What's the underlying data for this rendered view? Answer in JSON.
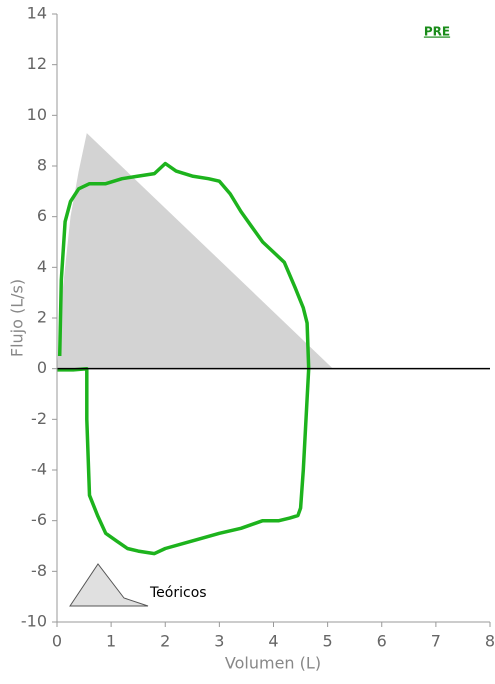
{
  "chart_data": {
    "type": "line",
    "xlabel": "Volumen (L)",
    "ylabel": "Flujo (L/s)",
    "xlim": [
      0,
      8
    ],
    "ylim": [
      -10,
      14
    ],
    "xticks": [
      0,
      1,
      2,
      3,
      4,
      5,
      6,
      7,
      8
    ],
    "yticks": [
      -10,
      -8,
      -6,
      -4,
      -2,
      0,
      2,
      4,
      6,
      8,
      10,
      12,
      14
    ],
    "grid": false,
    "series": [
      {
        "name": "Teóricos",
        "color": "#d3d3d3",
        "fill": true,
        "x": [
          0,
          0.1,
          0.25,
          0.4,
          0.55,
          5.1
        ],
        "values": [
          0,
          3,
          6,
          7.8,
          9.3,
          0
        ]
      },
      {
        "name": "PRE",
        "color": "#1db31d",
        "fill": false,
        "x": [
          0.05,
          0.08,
          0.15,
          0.25,
          0.4,
          0.6,
          0.9,
          1.2,
          1.5,
          1.8,
          2.0,
          2.2,
          2.5,
          2.8,
          3.0,
          3.2,
          3.4,
          3.6,
          3.8,
          4.0,
          4.2,
          4.4,
          4.55,
          4.62,
          4.65,
          4.6,
          4.55,
          4.5,
          4.45,
          4.3,
          4.1,
          3.8,
          3.4,
          3.0,
          2.5,
          2.0,
          1.8,
          1.5,
          1.3,
          1.1,
          0.9,
          0.75,
          0.6,
          0.55,
          0.55,
          0.3,
          0
        ],
        "values": [
          0.5,
          3.5,
          5.8,
          6.6,
          7.1,
          7.3,
          7.3,
          7.5,
          7.6,
          7.7,
          8.1,
          7.8,
          7.6,
          7.5,
          7.4,
          6.9,
          6.2,
          5.6,
          5.0,
          4.6,
          4.2,
          3.2,
          2.4,
          1.8,
          0,
          -2,
          -4,
          -5.5,
          -5.8,
          -5.9,
          -6.0,
          -6.0,
          -6.3,
          -6.5,
          -6.8,
          -7.1,
          -7.3,
          -7.2,
          -7.1,
          -6.8,
          -6.5,
          -5.8,
          -5,
          -2,
          0,
          -0.05,
          -0.05
        ]
      }
    ]
  }
}
